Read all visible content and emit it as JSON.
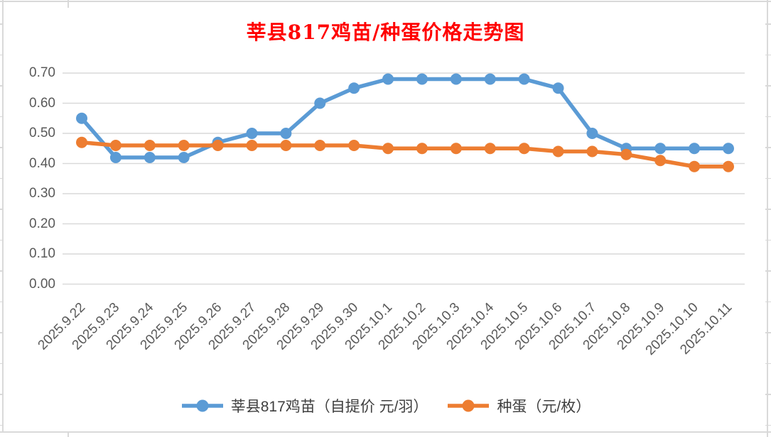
{
  "title": "莘县817鸡苗/种蛋价格走势图",
  "colors": {
    "title": "#FF0000",
    "axis_text": "#595959",
    "legend_text": "#3F3F3F",
    "gridline": "#D9D9D9",
    "series1": "#5B9BD5",
    "series2": "#ED7D31"
  },
  "chart_data": {
    "type": "line",
    "title": "莘县817鸡苗/种蛋价格走势图",
    "categories": [
      "2025.9.22",
      "2025.9.23",
      "2025.9.24",
      "2025.9.25",
      "2025.9.26",
      "2025.9.27",
      "2025.9.28",
      "2025.9.29",
      "2025.9.30",
      "2025.10.1",
      "2025.10.2",
      "2025.10.3",
      "2025.10.4",
      "2025.10.5",
      "2025.10.6",
      "2025.10.7",
      "2025.10.8",
      "2025.10.9",
      "2025.10.10",
      "2025.10.11"
    ],
    "series": [
      {
        "name": "莘县817鸡苗（自提价 元/羽）",
        "color": "#5B9BD5",
        "values": [
          0.55,
          0.42,
          0.42,
          0.42,
          0.47,
          0.5,
          0.5,
          0.6,
          0.65,
          0.68,
          0.68,
          0.68,
          0.68,
          0.68,
          0.65,
          0.5,
          0.45,
          0.45,
          0.45,
          0.45
        ]
      },
      {
        "name": "种蛋（元/枚）",
        "color": "#ED7D31",
        "values": [
          0.47,
          0.46,
          0.46,
          0.46,
          0.46,
          0.46,
          0.46,
          0.46,
          0.46,
          0.45,
          0.45,
          0.45,
          0.45,
          0.45,
          0.44,
          0.44,
          0.43,
          0.41,
          0.39,
          0.39
        ]
      }
    ],
    "ylim": [
      0.0,
      0.7
    ],
    "ytick_step": 0.1,
    "ytick_labels": [
      "0.00",
      "0.10",
      "0.20",
      "0.30",
      "0.40",
      "0.50",
      "0.60",
      "0.70"
    ],
    "xlabel": "",
    "ylabel": "",
    "grid": "horizontal",
    "legend_position": "bottom",
    "marker": "circle"
  }
}
